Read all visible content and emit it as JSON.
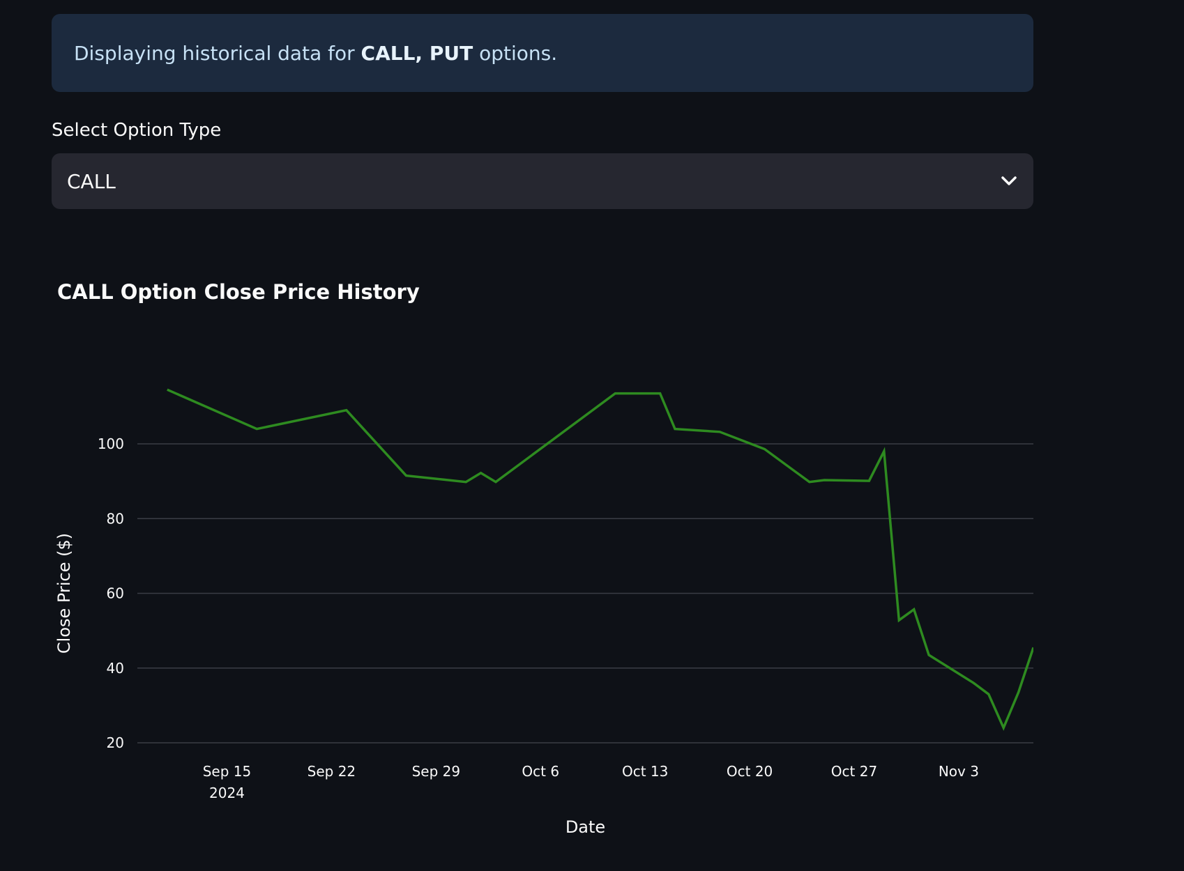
{
  "info": {
    "prefix": "Displaying historical data for ",
    "bold": "CALL, PUT",
    "suffix": " options."
  },
  "select": {
    "label": "Select Option Type",
    "value": "CALL",
    "icon": "chevron-down-icon"
  },
  "colors": {
    "line": "#2e8b20",
    "grid": "#3a3d45",
    "info_bg": "#1c2a3e",
    "select_bg": "#262730",
    "page_bg": "#0e1117"
  },
  "chart_data": {
    "type": "line",
    "title": "CALL Option Close Price History",
    "xlabel": "Date",
    "ylabel": "Close Price ($)",
    "ylim": [
      20,
      120
    ],
    "yticks": [
      20,
      40,
      60,
      80,
      100
    ],
    "xlim": [
      "2024-09-09",
      "2024-11-08"
    ],
    "xticks": [
      {
        "date": "2024-09-15",
        "label": "Sep 15",
        "sublabel": "2024"
      },
      {
        "date": "2024-09-22",
        "label": "Sep 22",
        "sublabel": ""
      },
      {
        "date": "2024-09-29",
        "label": "Sep 29",
        "sublabel": ""
      },
      {
        "date": "2024-10-06",
        "label": "Oct 6",
        "sublabel": ""
      },
      {
        "date": "2024-10-13",
        "label": "Oct 13",
        "sublabel": ""
      },
      {
        "date": "2024-10-20",
        "label": "Oct 20",
        "sublabel": ""
      },
      {
        "date": "2024-10-27",
        "label": "Oct 27",
        "sublabel": ""
      },
      {
        "date": "2024-11-03",
        "label": "Nov 3",
        "sublabel": ""
      }
    ],
    "grid": true,
    "series": [
      {
        "points": [
          {
            "x": "2024-09-11",
            "y": 114.5
          },
          {
            "x": "2024-09-17",
            "y": 104
          },
          {
            "x": "2024-09-23",
            "y": 109
          },
          {
            "x": "2024-09-27",
            "y": 91.5
          },
          {
            "x": "2024-10-01",
            "y": 89.8
          },
          {
            "x": "2024-10-02",
            "y": 92.2
          },
          {
            "x": "2024-10-03",
            "y": 89.8
          },
          {
            "x": "2024-10-11",
            "y": 113.5
          },
          {
            "x": "2024-10-14",
            "y": 113.5
          },
          {
            "x": "2024-10-15",
            "y": 104
          },
          {
            "x": "2024-10-18",
            "y": 103.2
          },
          {
            "x": "2024-10-21",
            "y": 98.6
          },
          {
            "x": "2024-10-24",
            "y": 89.8
          },
          {
            "x": "2024-10-25",
            "y": 90.3
          },
          {
            "x": "2024-10-28",
            "y": 90.1
          },
          {
            "x": "2024-10-29",
            "y": 98
          },
          {
            "x": "2024-10-30",
            "y": 52.8
          },
          {
            "x": "2024-10-31",
            "y": 55.7
          },
          {
            "x": "2024-11-01",
            "y": 43.5
          },
          {
            "x": "2024-11-04",
            "y": 36
          },
          {
            "x": "2024-11-05",
            "y": 33
          },
          {
            "x": "2024-11-06",
            "y": 24
          },
          {
            "x": "2024-11-07",
            "y": 33.5
          },
          {
            "x": "2024-11-08",
            "y": 45.5
          }
        ]
      }
    ]
  }
}
